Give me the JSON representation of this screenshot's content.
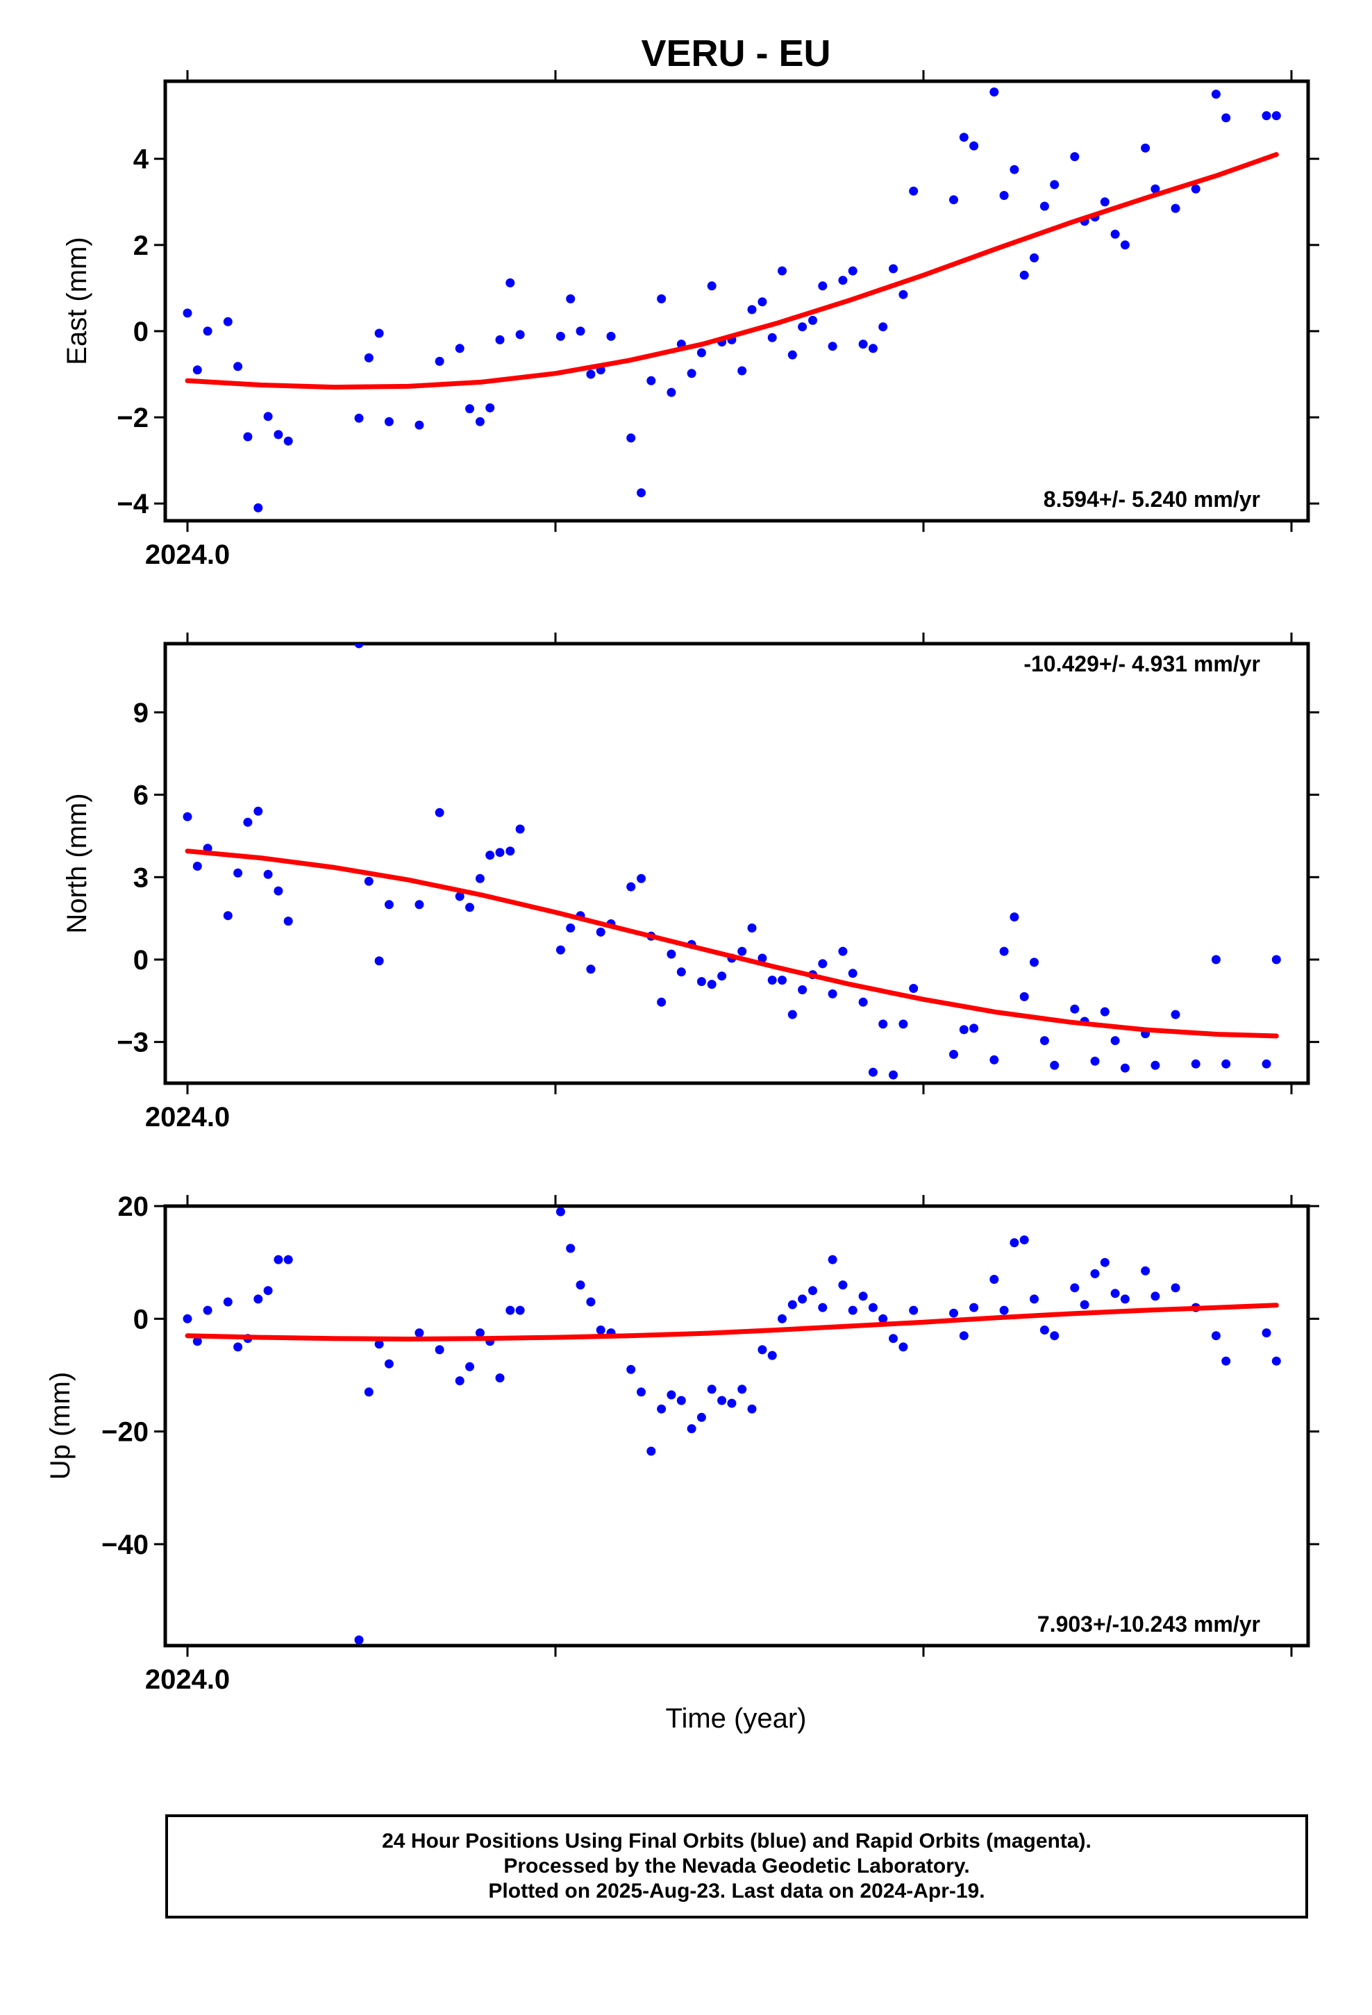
{
  "chart_data": {
    "title": "VERU - EU",
    "xlabel": "Time (year)",
    "x_tick_label": "2024.0",
    "x_range": [
      2024.0,
      2024.3
    ],
    "point_color": "#0000ff",
    "fit_color": "#ff0000",
    "panels": [
      {
        "type": "scatter",
        "ylabel": "East (mm)",
        "ylim": [
          -4.4,
          5.8
        ],
        "yticks": [
          -4,
          -2,
          0,
          2,
          4
        ],
        "ytick_labels": [
          "−4",
          "−2",
          "0",
          "2",
          "4"
        ],
        "rate": "8.594+/- 5.240 mm/yr",
        "rate_position": "bottom-right",
        "x": [
          2024.0,
          2024.0027,
          2024.0055,
          2024.011,
          2024.0137,
          2024.0164,
          2024.0192,
          2024.0219,
          2024.0247,
          2024.0274,
          2024.0466,
          2024.0493,
          2024.0521,
          2024.0548,
          2024.063,
          2024.0685,
          2024.074,
          2024.0767,
          2024.0795,
          2024.0822,
          2024.0849,
          2024.0877,
          2024.0904,
          2024.1014,
          2024.1041,
          2024.1068,
          2024.1096,
          2024.1123,
          2024.1151,
          2024.1205,
          2024.1233,
          2024.126,
          2024.1288,
          2024.1315,
          2024.1342,
          2024.137,
          2024.1397,
          2024.1425,
          2024.1452,
          2024.1479,
          2024.1507,
          2024.1534,
          2024.1562,
          2024.1589,
          2024.1616,
          2024.1644,
          2024.1671,
          2024.1699,
          2024.1726,
          2024.1753,
          2024.1781,
          2024.1808,
          2024.1836,
          2024.1863,
          2024.189,
          2024.1918,
          2024.1945,
          2024.1973,
          2024.2082,
          2024.211,
          2024.2137,
          2024.2192,
          2024.2219,
          2024.2247,
          2024.2274,
          2024.2301,
          2024.2329,
          2024.2356,
          2024.2411,
          2024.2438,
          2024.2466,
          2024.2493,
          2024.2521,
          2024.2548,
          2024.2603,
          2024.263,
          2024.2685,
          2024.274,
          2024.2795,
          2024.2822,
          2024.2932,
          2024.2959
        ],
        "y": [
          0.42,
          -0.9,
          0.0,
          0.22,
          -0.82,
          -2.45,
          -4.1,
          -1.98,
          -2.4,
          -2.55,
          -2.02,
          -0.62,
          -0.05,
          -2.1,
          -2.18,
          -0.7,
          -0.4,
          -1.8,
          -2.1,
          -1.78,
          -0.2,
          1.12,
          -0.08,
          -0.12,
          0.75,
          0.0,
          -1.0,
          -0.9,
          -0.12,
          -2.48,
          -3.75,
          -1.15,
          0.75,
          -1.42,
          -0.3,
          -0.98,
          -0.5,
          1.05,
          -0.25,
          -0.2,
          -0.92,
          0.5,
          0.68,
          -0.15,
          1.4,
          -0.55,
          0.1,
          0.25,
          1.05,
          -0.35,
          1.18,
          1.4,
          -0.3,
          -0.4,
          0.1,
          1.45,
          0.85,
          3.25,
          3.05,
          4.5,
          4.3,
          5.55,
          3.15,
          3.75,
          1.3,
          1.7,
          2.9,
          3.4,
          4.05,
          2.55,
          2.65,
          3.0,
          2.25,
          2.0,
          4.25,
          3.3,
          2.85,
          3.3,
          5.5,
          4.95,
          5.0,
          5.0
        ],
        "fit_x": [
          2024.0,
          2024.02,
          2024.04,
          2024.06,
          2024.08,
          2024.1,
          2024.12,
          2024.14,
          2024.16,
          2024.18,
          2024.2,
          2024.22,
          2024.24,
          2024.26,
          2024.28,
          2024.2959
        ],
        "fit_y": [
          -1.15,
          -1.25,
          -1.3,
          -1.28,
          -1.18,
          -0.98,
          -0.68,
          -0.3,
          0.18,
          0.72,
          1.3,
          1.92,
          2.52,
          3.08,
          3.62,
          4.1
        ]
      },
      {
        "type": "scatter",
        "ylabel": "North (mm)",
        "ylim": [
          -4.5,
          11.5
        ],
        "yticks": [
          -3,
          0,
          3,
          6,
          9
        ],
        "ytick_labels": [
          "−3",
          "0",
          "3",
          "6",
          "9"
        ],
        "rate": "-10.429+/- 4.931 mm/yr",
        "rate_position": "top-right",
        "x": [
          2024.0,
          2024.0027,
          2024.0055,
          2024.011,
          2024.0137,
          2024.0164,
          2024.0192,
          2024.0219,
          2024.0247,
          2024.0274,
          2024.0466,
          2024.0493,
          2024.0521,
          2024.0548,
          2024.063,
          2024.0685,
          2024.074,
          2024.0767,
          2024.0795,
          2024.0822,
          2024.0849,
          2024.0877,
          2024.0904,
          2024.1014,
          2024.1041,
          2024.1068,
          2024.1096,
          2024.1123,
          2024.1151,
          2024.1205,
          2024.1233,
          2024.126,
          2024.1288,
          2024.1315,
          2024.1342,
          2024.137,
          2024.1397,
          2024.1425,
          2024.1452,
          2024.1479,
          2024.1507,
          2024.1534,
          2024.1562,
          2024.1589,
          2024.1616,
          2024.1644,
          2024.1671,
          2024.1699,
          2024.1726,
          2024.1753,
          2024.1781,
          2024.1808,
          2024.1836,
          2024.1863,
          2024.189,
          2024.1918,
          2024.1945,
          2024.1973,
          2024.2082,
          2024.211,
          2024.2137,
          2024.2192,
          2024.2219,
          2024.2247,
          2024.2274,
          2024.2301,
          2024.2329,
          2024.2356,
          2024.2411,
          2024.2438,
          2024.2466,
          2024.2493,
          2024.2521,
          2024.2548,
          2024.2603,
          2024.263,
          2024.2685,
          2024.274,
          2024.2795,
          2024.2822,
          2024.2932,
          2024.2959
        ],
        "y": [
          5.2,
          3.4,
          4.05,
          1.6,
          3.15,
          5.0,
          5.4,
          3.1,
          2.5,
          1.4,
          11.5,
          2.85,
          -0.05,
          2.0,
          2.0,
          5.35,
          2.3,
          1.9,
          2.95,
          3.8,
          3.9,
          3.95,
          4.75,
          0.35,
          1.15,
          1.6,
          -0.35,
          1.0,
          1.3,
          2.65,
          2.95,
          0.85,
          -1.55,
          0.2,
          -0.45,
          0.55,
          -0.8,
          -0.9,
          -0.6,
          0.05,
          0.3,
          1.15,
          0.05,
          -0.75,
          -0.75,
          -2.0,
          -1.1,
          -0.55,
          -0.15,
          -1.25,
          0.3,
          -0.5,
          -1.55,
          -4.1,
          -2.35,
          -4.2,
          -2.35,
          -1.05,
          -3.45,
          -2.55,
          -2.5,
          -3.65,
          0.3,
          1.55,
          -1.35,
          -0.1,
          -2.95,
          -3.85,
          -1.8,
          -2.25,
          -3.7,
          -1.9,
          -2.95,
          -3.95,
          -2.7,
          -3.85,
          -2.0,
          -3.8,
          0.0,
          -3.8,
          -3.8,
          0.0
        ],
        "fit_x": [
          2024.0,
          2024.02,
          2024.04,
          2024.06,
          2024.08,
          2024.1,
          2024.12,
          2024.14,
          2024.16,
          2024.18,
          2024.2,
          2024.22,
          2024.24,
          2024.26,
          2024.28,
          2024.2959
        ],
        "fit_y": [
          3.95,
          3.7,
          3.35,
          2.9,
          2.35,
          1.72,
          1.05,
          0.38,
          -0.28,
          -0.9,
          -1.45,
          -1.92,
          -2.28,
          -2.55,
          -2.72,
          -2.78
        ]
      },
      {
        "type": "scatter",
        "ylabel": "Up (mm)",
        "ylim": [
          -58,
          20
        ],
        "yticks": [
          -40,
          -20,
          0,
          20
        ],
        "ytick_labels": [
          "−40",
          "−20",
          "0",
          "20"
        ],
        "rate": "7.903+/-10.243 mm/yr",
        "rate_position": "bottom-right",
        "x": [
          2024.0,
          2024.0027,
          2024.0055,
          2024.011,
          2024.0137,
          2024.0164,
          2024.0192,
          2024.0219,
          2024.0247,
          2024.0274,
          2024.0466,
          2024.0493,
          2024.0521,
          2024.0548,
          2024.063,
          2024.0685,
          2024.074,
          2024.0767,
          2024.0795,
          2024.0822,
          2024.0849,
          2024.0877,
          2024.0904,
          2024.1014,
          2024.1041,
          2024.1068,
          2024.1096,
          2024.1123,
          2024.1151,
          2024.1205,
          2024.1233,
          2024.126,
          2024.1288,
          2024.1315,
          2024.1342,
          2024.137,
          2024.1397,
          2024.1425,
          2024.1452,
          2024.1479,
          2024.1507,
          2024.1534,
          2024.1562,
          2024.1589,
          2024.1616,
          2024.1644,
          2024.1671,
          2024.1699,
          2024.1726,
          2024.1753,
          2024.1781,
          2024.1808,
          2024.1836,
          2024.1863,
          2024.189,
          2024.1918,
          2024.1945,
          2024.1973,
          2024.2082,
          2024.211,
          2024.2137,
          2024.2192,
          2024.2219,
          2024.2247,
          2024.2274,
          2024.2301,
          2024.2329,
          2024.2356,
          2024.2411,
          2024.2438,
          2024.2466,
          2024.2493,
          2024.2521,
          2024.2548,
          2024.2603,
          2024.263,
          2024.2685,
          2024.274,
          2024.2795,
          2024.2822,
          2024.2932,
          2024.2959
        ],
        "y": [
          0.0,
          -4.0,
          1.5,
          3.0,
          -5.0,
          -3.5,
          3.5,
          5.0,
          10.5,
          10.5,
          -57.0,
          -13.0,
          -4.5,
          -8.0,
          -2.5,
          -5.5,
          -11.0,
          -8.5,
          -2.5,
          -4.0,
          -10.5,
          1.5,
          1.5,
          19.0,
          12.5,
          6.0,
          3.0,
          -2.0,
          -2.5,
          -9.0,
          -13.0,
          -23.5,
          -16.0,
          -13.5,
          -14.5,
          -19.5,
          -17.5,
          -12.5,
          -14.5,
          -15.0,
          -12.5,
          -16.0,
          -5.5,
          -6.5,
          0.0,
          2.5,
          3.5,
          5.0,
          2.0,
          10.5,
          6.0,
          1.5,
          4.0,
          2.0,
          0.0,
          -3.5,
          -5.0,
          1.5,
          1.0,
          -3.0,
          2.0,
          7.0,
          1.5,
          13.5,
          14.0,
          3.5,
          -2.0,
          -3.0,
          5.5,
          2.5,
          8.0,
          10.0,
          4.5,
          3.5,
          8.5,
          4.0,
          5.5,
          2.0,
          -3.0,
          -7.5,
          -2.5,
          -7.5
        ],
        "fit_x": [
          2024.0,
          2024.02,
          2024.04,
          2024.06,
          2024.08,
          2024.1,
          2024.12,
          2024.14,
          2024.16,
          2024.18,
          2024.2,
          2024.22,
          2024.24,
          2024.26,
          2024.28,
          2024.2959
        ],
        "fit_y": [
          -3.0,
          -3.3,
          -3.5,
          -3.6,
          -3.5,
          -3.3,
          -3.0,
          -2.6,
          -2.0,
          -1.3,
          -0.6,
          0.2,
          0.9,
          1.5,
          2.0,
          2.4
        ]
      }
    ]
  },
  "footer": {
    "line1": "24 Hour Positions Using Final Orbits (blue) and Rapid Orbits (magenta).",
    "line2": "Processed by the Nevada Geodetic Laboratory.",
    "line3": "Plotted on 2025-Aug-23. Last data on 2024-Apr-19."
  }
}
